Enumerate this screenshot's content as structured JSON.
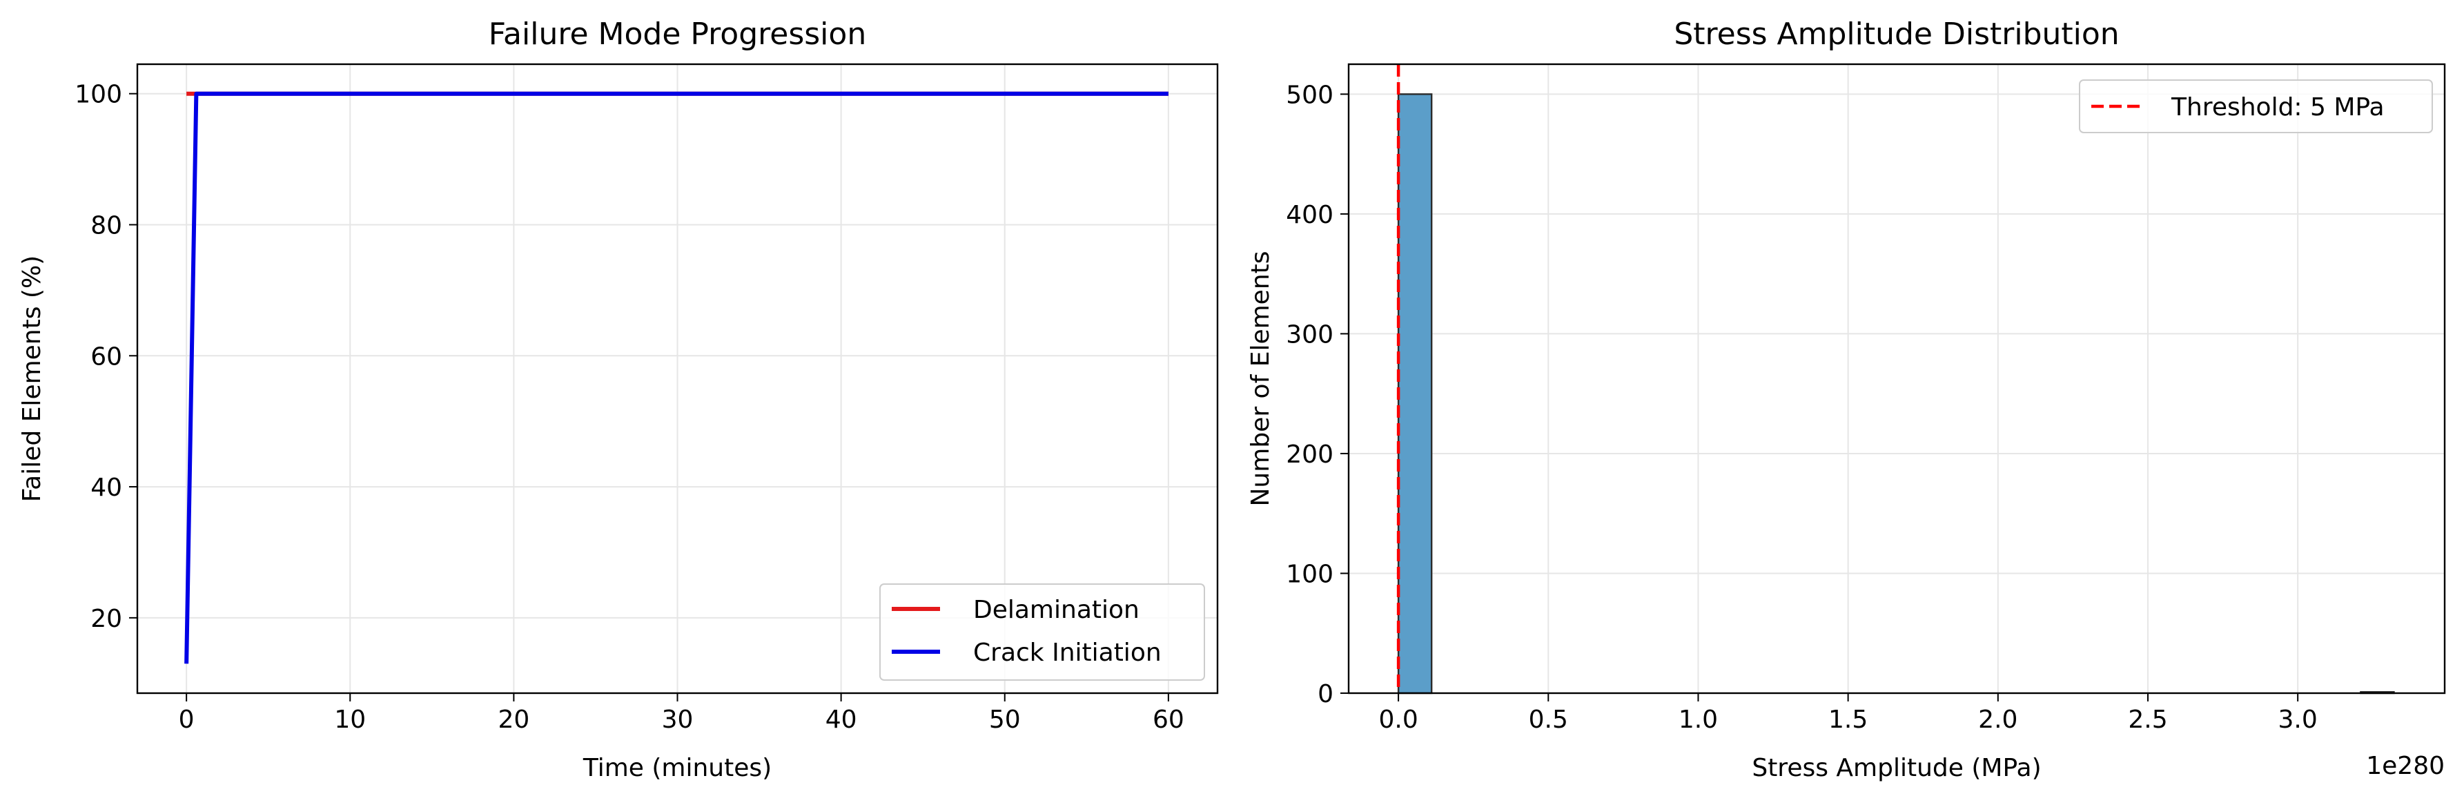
{
  "chart_data": [
    {
      "type": "line",
      "title": "Failure Mode Progression",
      "xlabel": "Time (minutes)",
      "ylabel": "Failed Elements (%)",
      "xlim": [
        -3,
        63
      ],
      "ylim": [
        8.5,
        104.5
      ],
      "xticks": [
        0,
        10,
        20,
        30,
        40,
        50,
        60
      ],
      "yticks": [
        20,
        40,
        60,
        80,
        100
      ],
      "grid": true,
      "legend_position": "lower right",
      "series": [
        {
          "name": "Delamination",
          "color": "#e41a1c",
          "x": [
            0,
            60
          ],
          "y": [
            100,
            100
          ]
        },
        {
          "name": "Crack Initiation",
          "color": "#0000e6",
          "x": [
            0,
            0.6,
            60
          ],
          "y": [
            13,
            100,
            100
          ]
        }
      ]
    },
    {
      "type": "bar",
      "subtype": "histogram",
      "title": "Stress Amplitude Distribution",
      "xlabel": "Stress Amplitude (MPa)",
      "ylabel": "Number of Elements",
      "x_offset_text": "1e280",
      "xlim": [
        -0.166,
        3.49
      ],
      "ylim": [
        0,
        525
      ],
      "xticks": [
        0.0,
        0.5,
        1.0,
        1.5,
        2.0,
        2.5,
        3.0
      ],
      "xtick_labels": [
        "0.0",
        "0.5",
        "1.0",
        "1.5",
        "2.0",
        "2.5",
        "3.0"
      ],
      "yticks": [
        0,
        100,
        200,
        300,
        400,
        500
      ],
      "grid": true,
      "legend_position": "upper right",
      "bar_color": "#5b9ec9",
      "bins": [
        {
          "start": 0.0,
          "end": 0.1107,
          "count": 500
        },
        {
          "start": 3.21,
          "end": 3.3207,
          "count": 1
        }
      ],
      "threshold": {
        "label": "Threshold: 5 MPa",
        "value": 0,
        "color": "#ff0000"
      }
    }
  ]
}
